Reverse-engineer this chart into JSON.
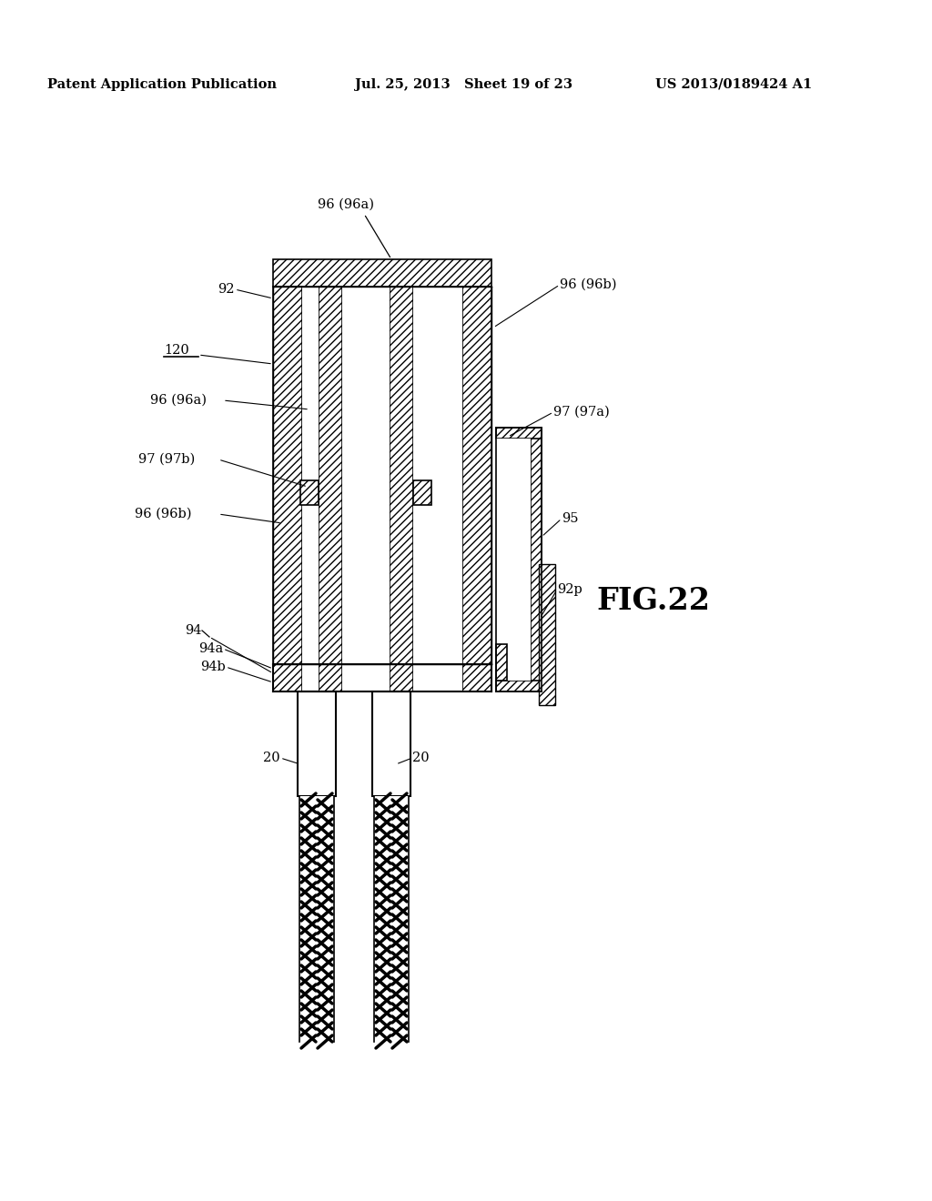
{
  "bg_color": "#ffffff",
  "header_left": "Patent Application Publication",
  "header_mid": "Jul. 25, 2013   Sheet 19 of 23",
  "header_right": "US 2013/0189424 A1",
  "fig_label": "FIG.22"
}
